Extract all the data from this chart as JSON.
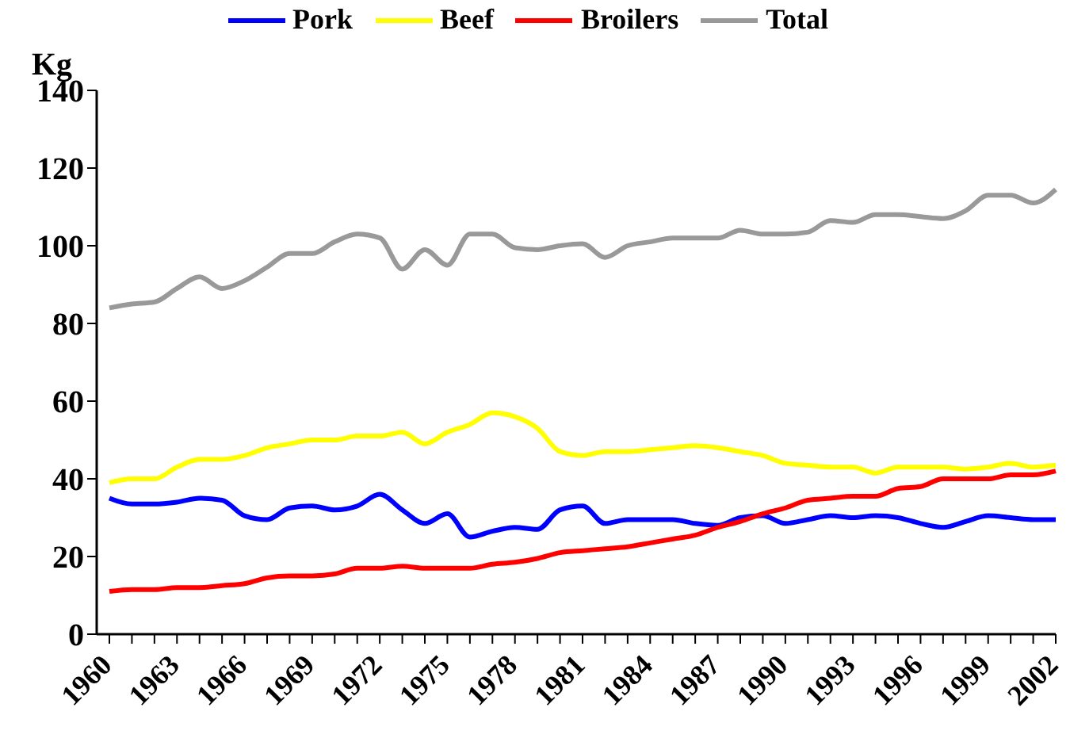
{
  "chart_data": {
    "type": "line",
    "ylabel": "Kg",
    "categories": [
      "1960",
      null,
      null,
      "1963",
      null,
      null,
      "1966",
      null,
      null,
      "1969",
      null,
      null,
      "1972",
      null,
      null,
      "1975",
      null,
      null,
      "1978",
      null,
      null,
      "1981",
      null,
      null,
      "1984",
      null,
      null,
      "1987",
      null,
      null,
      "1990",
      null,
      null,
      "1993",
      null,
      null,
      "1996",
      null,
      null,
      "1999",
      null,
      null,
      "2002"
    ],
    "series": [
      {
        "name": "Pork",
        "color": "#0000ff",
        "values": [
          35,
          33.5,
          33.5,
          34,
          35,
          34.5,
          30.5,
          29.5,
          32.5,
          33,
          32,
          33,
          36,
          32,
          28.5,
          31,
          25,
          26.5,
          27.5,
          27,
          32,
          33,
          28.5,
          29.5,
          29.5,
          29.5,
          28.5,
          28,
          30,
          30.5,
          28.5,
          29.5,
          30.5,
          30,
          30.5,
          30,
          28.5,
          27.5,
          29,
          30.5,
          30,
          29.5,
          29.5
        ]
      },
      {
        "name": "Beef",
        "color": "#ffff00",
        "values": [
          39,
          40,
          40,
          43,
          45,
          45,
          46,
          48,
          49,
          50,
          50,
          51,
          51,
          52,
          49,
          52,
          54,
          57,
          56,
          53,
          47,
          46,
          47,
          47,
          47.5,
          48,
          48.5,
          48,
          47,
          46,
          44,
          43.5,
          43,
          43,
          41.5,
          43,
          43,
          43,
          42.5,
          43,
          44,
          43,
          43.5
        ]
      },
      {
        "name": "Broilers",
        "color": "#ff0000",
        "values": [
          11,
          11.5,
          11.5,
          12,
          12,
          12.5,
          13,
          14.5,
          15,
          15,
          15.5,
          17,
          17,
          17.5,
          17,
          17,
          17,
          18,
          18.5,
          19.5,
          21,
          21.5,
          22,
          22.5,
          23.5,
          24.5,
          25.5,
          27.5,
          29,
          31,
          32.5,
          34.5,
          35,
          35.5,
          35.5,
          37.5,
          38,
          40,
          40,
          40,
          41,
          41,
          42
        ]
      },
      {
        "name": "Total",
        "color": "#999999",
        "values": [
          84,
          85,
          85.5,
          89,
          92,
          89,
          91,
          94.5,
          98,
          98,
          101,
          103,
          102,
          94,
          99,
          95,
          103,
          103,
          99.5,
          99,
          100,
          100.5,
          97,
          100,
          101,
          102,
          102,
          102,
          104,
          103,
          103,
          103.5,
          106.5,
          106,
          108,
          108,
          107.5,
          107,
          109,
          113,
          113,
          111,
          114.5
        ]
      }
    ],
    "ylim": [
      0,
      140
    ],
    "yticks": [
      0,
      20,
      40,
      60,
      80,
      100,
      120,
      140
    ],
    "grid": false,
    "legend": "top",
    "marker": "none",
    "line_style": "solid"
  }
}
